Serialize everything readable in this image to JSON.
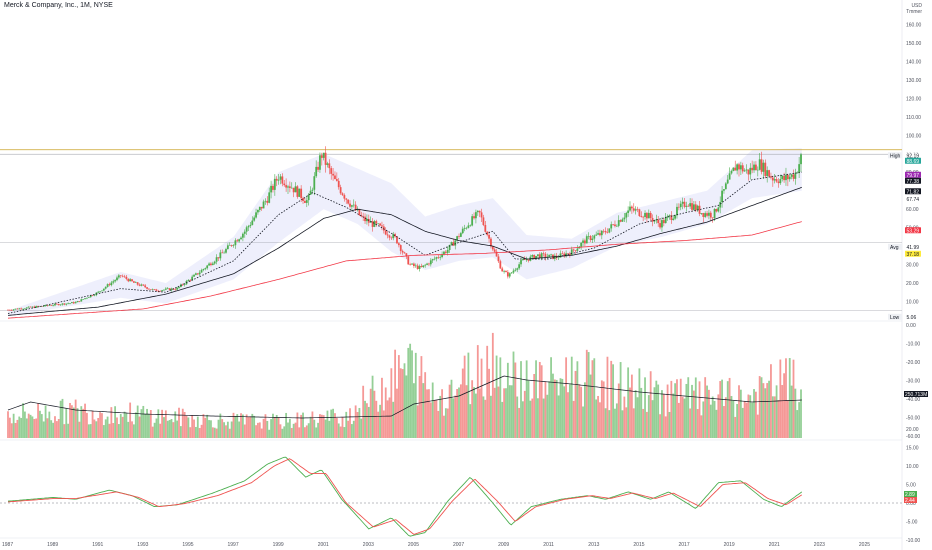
{
  "header": {
    "title": "Merck & Company, Inc., 1M, NYSE",
    "currency": "USD",
    "currency_note": "Tmmer"
  },
  "colors": {
    "up": "#26a69a",
    "up_bar": "#4caf50",
    "down": "#ef5350",
    "ma_fast": "#131722",
    "ma_slow": "#f23645",
    "band": "#b2b5f0",
    "high_line": "#c9a227",
    "avg_line": "#9598a1"
  },
  "chart_data": [
    {
      "type": "candlestick",
      "title": "Merck & Company, Inc., 1M, NYSE",
      "xlim": [
        1987.0,
        2027.0
      ],
      "ylim": [
        0,
        170
      ],
      "x_ticks": [
        "1987",
        "1989",
        "1991",
        "1993",
        "1995",
        "1997",
        "1999",
        "2001",
        "2003",
        "2005",
        "2007",
        "2009",
        "2011",
        "2013",
        "2015",
        "2017",
        "2019",
        "2021",
        "2023",
        "2025"
      ],
      "y_ticks": [
        "160.00",
        "150.00",
        "140.00",
        "130.00",
        "120.00",
        "110.00",
        "100.00",
        "90.00",
        "80.00",
        "70.00",
        "60.00",
        "50.00",
        "40.00",
        "30.00",
        "20.00",
        "10.00"
      ],
      "anchors": [
        [
          1987.0,
          5.5
        ],
        [
          1988.5,
          7.5
        ],
        [
          1990.0,
          9.5
        ],
        [
          1991.0,
          15
        ],
        [
          1992.0,
          24
        ],
        [
          1992.6,
          20
        ],
        [
          1993.5,
          16
        ],
        [
          1994.5,
          17
        ],
        [
          1995.5,
          26
        ],
        [
          1996.5,
          36
        ],
        [
          1997.5,
          48
        ],
        [
          1998.5,
          66
        ],
        [
          1999.0,
          78
        ],
        [
          1999.6,
          72
        ],
        [
          2000.3,
          64
        ],
        [
          2000.9,
          90
        ],
        [
          2001.4,
          77
        ],
        [
          2002.0,
          66
        ],
        [
          2002.7,
          55
        ],
        [
          2003.5,
          50
        ],
        [
          2004.2,
          44
        ],
        [
          2004.8,
          30
        ],
        [
          2005.3,
          28
        ],
        [
          2005.9,
          33
        ],
        [
          2006.5,
          38
        ],
        [
          2007.4,
          52
        ],
        [
          2007.9,
          58
        ],
        [
          2008.3,
          45
        ],
        [
          2008.9,
          27
        ],
        [
          2009.2,
          24
        ],
        [
          2009.8,
          32
        ],
        [
          2010.5,
          35
        ],
        [
          2011.3,
          34
        ],
        [
          2012.0,
          37
        ],
        [
          2012.7,
          44
        ],
        [
          2013.4,
          47
        ],
        [
          2014.0,
          53
        ],
        [
          2014.6,
          60
        ],
        [
          2015.3,
          57
        ],
        [
          2015.9,
          52
        ],
        [
          2016.5,
          57
        ],
        [
          2017.1,
          64
        ],
        [
          2017.8,
          58
        ],
        [
          2018.3,
          57
        ],
        [
          2018.9,
          74
        ],
        [
          2019.3,
          84
        ],
        [
          2019.8,
          80
        ],
        [
          2020.3,
          85
        ],
        [
          2020.9,
          77
        ],
        [
          2021.4,
          76
        ],
        [
          2021.9,
          79
        ],
        [
          2022.2,
          88.69
        ]
      ],
      "moving_averages": [
        {
          "name": "MA fast",
          "anchors": [
            [
              1987,
              3.5
            ],
            [
              1992,
              17
            ],
            [
              1994,
              15
            ],
            [
              1997,
              32
            ],
            [
              1999,
              57
            ],
            [
              2000.5,
              69
            ],
            [
              2002,
              61
            ],
            [
              2004,
              47
            ],
            [
              2005.5,
              35
            ],
            [
              2007,
              42
            ],
            [
              2008.5,
              48
            ],
            [
              2009.5,
              33
            ],
            [
              2011,
              33
            ],
            [
              2013,
              39
            ],
            [
              2015,
              52
            ],
            [
              2017,
              58
            ],
            [
              2018.5,
              62
            ],
            [
              2020,
              76
            ],
            [
              2022.2,
              80
            ]
          ]
        },
        {
          "name": "MA slow",
          "anchors": [
            [
              1987,
              2.5
            ],
            [
              1991,
              7
            ],
            [
              1994,
              14
            ],
            [
              1997,
              25
            ],
            [
              1999,
              39
            ],
            [
              2001,
              55
            ],
            [
              2002.5,
              60
            ],
            [
              2004,
              57
            ],
            [
              2005.5,
              48
            ],
            [
              2007,
              43
            ],
            [
              2008.5,
              40
            ],
            [
              2010,
              33
            ],
            [
              2012,
              35
            ],
            [
              2014,
              40
            ],
            [
              2016,
              47
            ],
            [
              2018,
              53
            ],
            [
              2020,
              62
            ],
            [
              2022.2,
              71.82
            ]
          ]
        },
        {
          "name": "MA long",
          "anchors": [
            [
              1987,
              1
            ],
            [
              1993,
              6
            ],
            [
              1996,
              13
            ],
            [
              1999,
              22
            ],
            [
              2002,
              32
            ],
            [
              2005,
              35
            ],
            [
              2008,
              36
            ],
            [
              2011,
              38
            ],
            [
              2014,
              41
            ],
            [
              2017,
              43
            ],
            [
              2020,
              46
            ],
            [
              2022.2,
              53.29
            ]
          ]
        }
      ],
      "band": {
        "upper": [
          [
            1987,
            5
          ],
          [
            1992,
            26
          ],
          [
            1994,
            20
          ],
          [
            1997,
            45
          ],
          [
            1999,
            80
          ],
          [
            2001,
            90
          ],
          [
            2002.5,
            82
          ],
          [
            2004,
            74
          ],
          [
            2005.5,
            56
          ],
          [
            2007,
            62
          ],
          [
            2008.5,
            66
          ],
          [
            2010,
            46
          ],
          [
            2012,
            44
          ],
          [
            2014,
            58
          ],
          [
            2016,
            64
          ],
          [
            2018,
            70
          ],
          [
            2020,
            92
          ],
          [
            2022.2,
            93
          ]
        ],
        "lower": [
          [
            1987,
            2
          ],
          [
            1992,
            12
          ],
          [
            1994,
            9
          ],
          [
            1997,
            22
          ],
          [
            1999,
            42
          ],
          [
            2001,
            60
          ],
          [
            2002.5,
            52
          ],
          [
            2004,
            37
          ],
          [
            2005.5,
            27
          ],
          [
            2007,
            32
          ],
          [
            2008.5,
            34
          ],
          [
            2010,
            22
          ],
          [
            2012,
            28
          ],
          [
            2014,
            40
          ],
          [
            2016,
            45
          ],
          [
            2018,
            52
          ],
          [
            2020,
            66
          ],
          [
            2022.2,
            70
          ]
        ]
      },
      "price_labels": [
        {
          "label": "High",
          "value": "92.19"
        },
        {
          "value": "88.69"
        },
        {
          "value": "79.97"
        },
        {
          "value": "77.38"
        },
        {
          "value": "71.82"
        },
        {
          "value": "67.74"
        },
        {
          "value": "53.29"
        },
        {
          "label": "Avg",
          "value": "41.99"
        },
        {
          "value": "37.18"
        },
        {
          "label": "Low",
          "value": "5.06"
        }
      ]
    },
    {
      "type": "bar",
      "title": "Volume",
      "y_ticks": [
        "0.00",
        "-10.00",
        "-20.00",
        "-30.00",
        "-40.00",
        "-50.00",
        "-60.00"
      ],
      "last_value": "250.713M",
      "avg_anchors": [
        [
          1987,
          28
        ],
        [
          1988,
          36
        ],
        [
          1990,
          28
        ],
        [
          1993,
          24
        ],
        [
          1996,
          22
        ],
        [
          2000,
          20
        ],
        [
          2004,
          22
        ],
        [
          2005,
          34
        ],
        [
          2006,
          38
        ],
        [
          2007,
          42
        ],
        [
          2008,
          52
        ],
        [
          2009,
          62
        ],
        [
          2010,
          58
        ],
        [
          2012,
          54
        ],
        [
          2015,
          46
        ],
        [
          2018,
          40
        ],
        [
          2020,
          36
        ],
        [
          2022.2,
          38
        ]
      ],
      "level_anchors": [
        [
          1987,
          26
        ],
        [
          1990,
          30
        ],
        [
          1993,
          26
        ],
        [
          1996,
          20
        ],
        [
          1999,
          18
        ],
        [
          2002,
          24
        ],
        [
          2004.8,
          80
        ],
        [
          2006,
          44
        ],
        [
          2007,
          60
        ],
        [
          2008.5,
          90
        ],
        [
          2009,
          70
        ],
        [
          2011,
          60
        ],
        [
          2012,
          70
        ],
        [
          2014,
          58
        ],
        [
          2016,
          48
        ],
        [
          2018,
          45
        ],
        [
          2020,
          44
        ],
        [
          2021.5,
          65
        ],
        [
          2022.2,
          52
        ]
      ]
    },
    {
      "type": "line",
      "title": "Oscillator",
      "y_ticks": [
        "20.00",
        "15.00",
        "10.00",
        "5.00",
        "0.00",
        "-5.00",
        "-10.00"
      ],
      "series": [
        {
          "anchors": [
            [
              1987,
              0.5
            ],
            [
              1989,
              1.5
            ],
            [
              1990,
              1
            ],
            [
              1991.5,
              3.5
            ],
            [
              1992.5,
              2
            ],
            [
              1993.5,
              -1
            ],
            [
              1994.5,
              -0.5
            ],
            [
              1996,
              2.5
            ],
            [
              1997.5,
              6
            ],
            [
              1998.5,
              10.5
            ],
            [
              1999.3,
              12.5
            ],
            [
              2000.2,
              7
            ],
            [
              2000.9,
              9
            ],
            [
              2001.8,
              1
            ],
            [
              2003,
              -7
            ],
            [
              2004,
              -4
            ],
            [
              2004.8,
              -9
            ],
            [
              2005.5,
              -8
            ],
            [
              2006.5,
              0.5
            ],
            [
              2007.5,
              7
            ],
            [
              2008.5,
              0
            ],
            [
              2009.3,
              -6
            ],
            [
              2010.2,
              -1
            ],
            [
              2011.5,
              1
            ],
            [
              2012.7,
              2
            ],
            [
              2013.5,
              1
            ],
            [
              2014.5,
              3
            ],
            [
              2015.5,
              1
            ],
            [
              2016.3,
              3
            ],
            [
              2017.5,
              -1.5
            ],
            [
              2018.5,
              5.5
            ],
            [
              2019.5,
              6
            ],
            [
              2020.5,
              1
            ],
            [
              2021.3,
              -1
            ],
            [
              2022.2,
              3
            ]
          ]
        },
        {
          "anchors": [
            [
              1987,
              0.3
            ],
            [
              1989,
              1.2
            ],
            [
              1990,
              1.2
            ],
            [
              1991.8,
              3
            ],
            [
              1992.8,
              1.5
            ],
            [
              1993.7,
              -1
            ],
            [
              1994.8,
              -0.2
            ],
            [
              1996.3,
              2
            ],
            [
              1997.8,
              5.5
            ],
            [
              1998.8,
              10
            ],
            [
              1999.5,
              12
            ],
            [
              2000.4,
              8
            ],
            [
              2001.1,
              8
            ],
            [
              2002,
              0
            ],
            [
              2003.2,
              -6.5
            ],
            [
              2004.2,
              -4.5
            ],
            [
              2005,
              -8.5
            ],
            [
              2005.7,
              -7
            ],
            [
              2006.7,
              0.5
            ],
            [
              2007.7,
              6.5
            ],
            [
              2008.7,
              0.5
            ],
            [
              2009.5,
              -5
            ],
            [
              2010.4,
              -1
            ],
            [
              2011.7,
              1
            ],
            [
              2012.9,
              2
            ],
            [
              2013.7,
              1.2
            ],
            [
              2014.7,
              2.7
            ],
            [
              2015.7,
              1.2
            ],
            [
              2016.5,
              2.7
            ],
            [
              2017.7,
              -1
            ],
            [
              2018.7,
              5
            ],
            [
              2019.7,
              5.5
            ],
            [
              2020.7,
              1.2
            ],
            [
              2021.5,
              -0.5
            ],
            [
              2022.2,
              2.2
            ]
          ]
        }
      ],
      "value_labels": [
        "2.89",
        "2.44"
      ]
    }
  ]
}
